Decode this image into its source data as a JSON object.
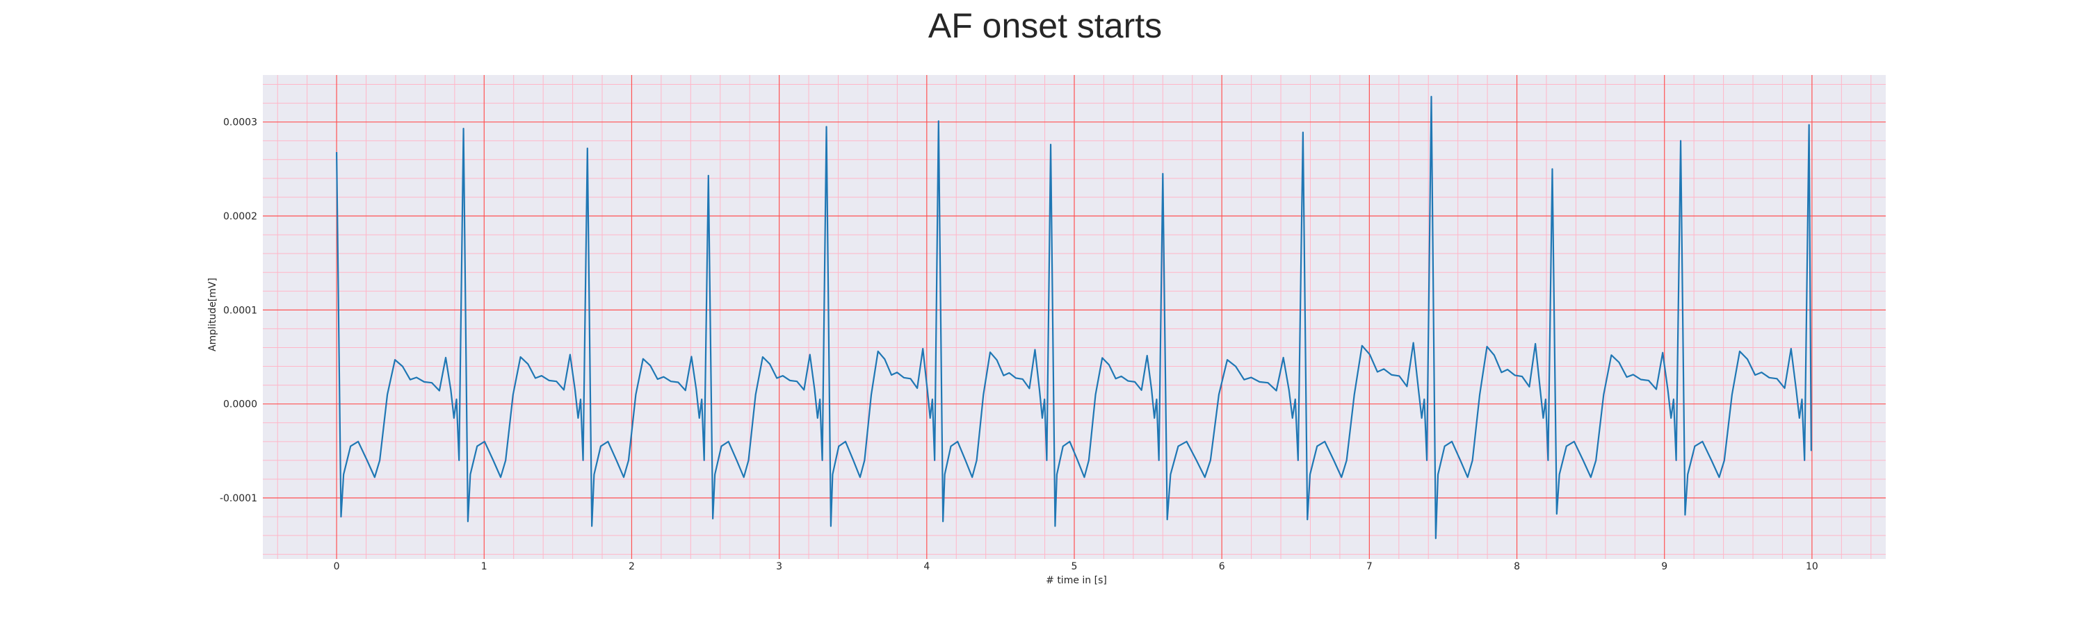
{
  "chart_data": {
    "type": "line",
    "title": "AF onset starts",
    "xlabel": "# time in [s]",
    "ylabel": "Amplitude[mV]",
    "xlim": [
      -0.5,
      10.5
    ],
    "ylim": [
      -0.000165,
      0.00035
    ],
    "xticks": [
      0,
      1,
      2,
      3,
      4,
      5,
      6,
      7,
      8,
      9,
      10
    ],
    "yticks": [
      -0.0001,
      0.0,
      0.0001,
      0.0002,
      0.0003
    ],
    "xtick_labels": [
      "0",
      "1",
      "2",
      "3",
      "4",
      "5",
      "6",
      "7",
      "8",
      "9",
      "10"
    ],
    "ytick_labels": [
      "-0.0001",
      "0.0000",
      "0.0001",
      "0.0002",
      "0.0003"
    ],
    "grid": true,
    "minor_grid": true,
    "line_color": "#1f77b4",
    "major_grid_color": "#ff5252",
    "minor_grid_color": "#ffb6c8",
    "background_color": "#eaeaf2",
    "series": [
      {
        "r_peaks_x": [
          0.0,
          0.86,
          1.7,
          2.52,
          3.32,
          4.08,
          4.84,
          5.6,
          6.55,
          7.42,
          8.24,
          9.11,
          9.98
        ],
        "r_peaks_y": [
          0.000268,
          0.000293,
          0.000272,
          0.000243,
          0.000295,
          0.000301,
          0.000276,
          0.000245,
          0.000289,
          0.000327,
          0.00025,
          0.00028,
          0.000297
        ],
        "s_troughs_y": [
          -0.00012,
          -0.000125,
          -0.00013,
          -0.000122,
          -0.00013,
          -0.000125,
          -0.00013,
          -0.000123,
          -0.000123,
          -0.000143,
          -0.000117,
          -0.000118,
          -5e-05
        ],
        "t_peaks_y": [
          4.7e-05,
          5e-05,
          4.8e-05,
          5e-05,
          5.6e-05,
          5.5e-05,
          4.9e-05,
          4.7e-05,
          6.2e-05,
          6.1e-05,
          5.2e-05,
          5.6e-05
        ]
      }
    ]
  }
}
